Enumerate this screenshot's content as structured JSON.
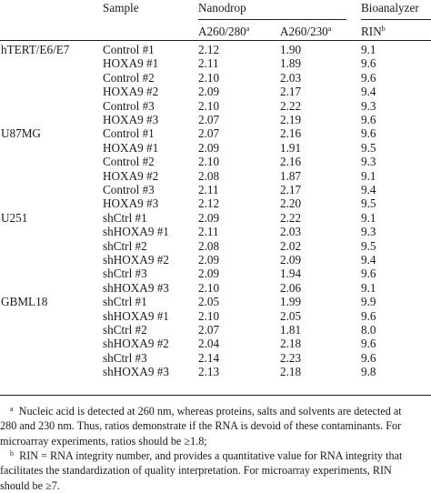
{
  "headers": {
    "sample": "Sample",
    "nanodrop": "Nanodrop",
    "bioanalyzer": "Bioanalyzer",
    "a260_280": "A260/280",
    "a260_280_mark": "a",
    "a260_230": "A260/230",
    "a260_230_mark": "a",
    "rin": "RIN",
    "rin_mark": "b"
  },
  "rows": [
    {
      "group": "hTERT/E6/E7",
      "sample": "Control #1",
      "a280": "2.12",
      "a230": "1.90",
      "rin": "9.1"
    },
    {
      "group": "",
      "sample": "HOXA9 #1",
      "a280": "2.11",
      "a230": "1.89",
      "rin": "9.6"
    },
    {
      "group": "",
      "sample": "Control #2",
      "a280": "2.10",
      "a230": "2.03",
      "rin": "9.6"
    },
    {
      "group": "",
      "sample": "HOXA9 #2",
      "a280": "2.09",
      "a230": "2.17",
      "rin": "9.4"
    },
    {
      "group": "",
      "sample": "Control #3",
      "a280": "2.10",
      "a230": "2.22",
      "rin": "9.3"
    },
    {
      "group": "",
      "sample": "HOXA9 #3",
      "a280": "2.07",
      "a230": "2.19",
      "rin": "9.6"
    },
    {
      "group": "U87MG",
      "sample": "Control #1",
      "a280": "2.07",
      "a230": "2.16",
      "rin": "9.6"
    },
    {
      "group": "",
      "sample": "HOXA9 #1",
      "a280": "2.09",
      "a230": "1.91",
      "rin": "9.5"
    },
    {
      "group": "",
      "sample": "Control #2",
      "a280": "2.10",
      "a230": "2.16",
      "rin": "9.3"
    },
    {
      "group": "",
      "sample": "HOXA9 #2",
      "a280": "2.08",
      "a230": "1.87",
      "rin": "9.1"
    },
    {
      "group": "",
      "sample": "Control #3",
      "a280": "2.11",
      "a230": "2.17",
      "rin": "9.4"
    },
    {
      "group": "",
      "sample": "HOXA9 #3",
      "a280": "2.12",
      "a230": "2.20",
      "rin": "9.5"
    },
    {
      "group": "U251",
      "sample": "shCtrl #1",
      "a280": "2.09",
      "a230": "2.22",
      "rin": "9.1"
    },
    {
      "group": "",
      "sample": "shHOXA9 #1",
      "a280": "2.11",
      "a230": "2.03",
      "rin": "9.3"
    },
    {
      "group": "",
      "sample": "shCtrl #2",
      "a280": "2.08",
      "a230": "2.02",
      "rin": "9.5"
    },
    {
      "group": "",
      "sample": "shHOXA9 #2",
      "a280": "2.09",
      "a230": "2.09",
      "rin": "9.4"
    },
    {
      "group": "",
      "sample": "shCtrl #3",
      "a280": "2.09",
      "a230": "1.94",
      "rin": "9.6"
    },
    {
      "group": "",
      "sample": "shHOXA9 #3",
      "a280": "2.10",
      "a230": "2.06",
      "rin": "9.1"
    },
    {
      "group": "GBML18",
      "sample": "shCtrl #1",
      "a280": "2.05",
      "a230": "1.99",
      "rin": "9.9"
    },
    {
      "group": "",
      "sample": "shHOXA9 #1",
      "a280": "2.10",
      "a230": "2.05",
      "rin": "9.6"
    },
    {
      "group": "",
      "sample": "shCtrl #2",
      "a280": "2.07",
      "a230": "1.81",
      "rin": "8.0"
    },
    {
      "group": "",
      "sample": "shHOXA9 #2",
      "a280": "2.04",
      "a230": "2.18",
      "rin": "9.6"
    },
    {
      "group": "",
      "sample": "shCtrl #3",
      "a280": "2.14",
      "a230": "2.23",
      "rin": "9.6"
    },
    {
      "group": "",
      "sample": "shHOXA9 #3",
      "a280": "2.13",
      "a230": "2.18",
      "rin": "9.8"
    }
  ],
  "footnotes": {
    "a": {
      "mark": "a",
      "lines": [
        "Nucleic acid is detected at 260 nm, whereas proteins, salts and solvents are detected at",
        "280 and 230 nm. Thus, ratios demonstrate if the RNA is devoid of these contaminants. For",
        "microarray experiments, ratios should be ≥1.8;"
      ]
    },
    "b": {
      "mark": "b",
      "lines": [
        "RIN = RNA integrity number, and provides a quantitative value for RNA integrity that",
        "facilitates the standardization of quality interpretation. For microarray experiments, RIN",
        "should be ≥7."
      ]
    }
  }
}
